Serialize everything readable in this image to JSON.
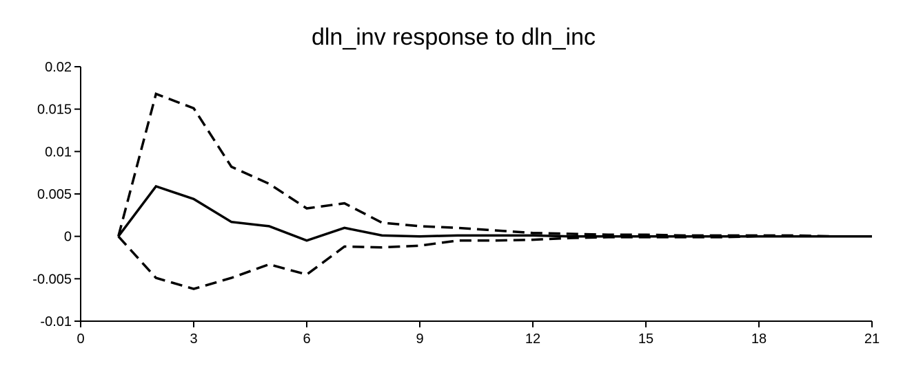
{
  "chart_data": {
    "type": "line",
    "title": "dln_inv response to dln_inc",
    "xlabel": "",
    "ylabel": "",
    "xlim": [
      0,
      21
    ],
    "ylim": [
      -0.01,
      0.02
    ],
    "x_ticks": [
      0,
      3,
      6,
      9,
      12,
      15,
      18,
      21
    ],
    "x_tick_labels": [
      "0",
      "3",
      "6",
      "9",
      "12",
      "15",
      "18",
      "21"
    ],
    "y_ticks": [
      0.02,
      0.015,
      0.01,
      0.005,
      0,
      -0.005,
      -0.01
    ],
    "y_tick_labels": [
      "0.02",
      "0.015",
      "0.01",
      "0.005",
      "0",
      "-0.005",
      "-0.01"
    ],
    "grid": false,
    "legend": "none",
    "x": [
      1,
      2,
      3,
      4,
      5,
      6,
      7,
      8,
      9,
      10,
      11,
      12,
      13,
      14,
      15,
      16,
      17,
      18,
      19,
      20,
      21
    ],
    "series": [
      {
        "style": "solid",
        "values": [
          0,
          0.0059,
          0.0044,
          0.0017,
          0.0012,
          -0.0005,
          0.001,
          0.0001,
          0.0,
          0.0001,
          0.0001,
          0.0001,
          0.0,
          0.0,
          0.0,
          0.0,
          0.0,
          0.0,
          0.0,
          0.0,
          0.0
        ]
      },
      {
        "style": "dashed",
        "values": [
          0,
          0.0168,
          0.0151,
          0.0082,
          0.0062,
          0.0033,
          0.0039,
          0.0016,
          0.0012,
          0.001,
          0.0007,
          0.0004,
          0.0003,
          0.0002,
          0.0002,
          0.0001,
          0.0001,
          0.0001,
          0.0001,
          0.0,
          0.0
        ]
      },
      {
        "style": "dashed",
        "values": [
          0,
          -0.0049,
          -0.0062,
          -0.0049,
          -0.0033,
          -0.0045,
          -0.0012,
          -0.0013,
          -0.0011,
          -0.0005,
          -0.0005,
          -0.0004,
          -0.0002,
          -0.0001,
          -0.0001,
          -0.0001,
          -0.0001,
          0.0,
          0.0,
          0.0,
          0.0
        ]
      }
    ],
    "colors": {
      "line": "#000000",
      "axis": "#000000",
      "background": "#ffffff"
    }
  }
}
